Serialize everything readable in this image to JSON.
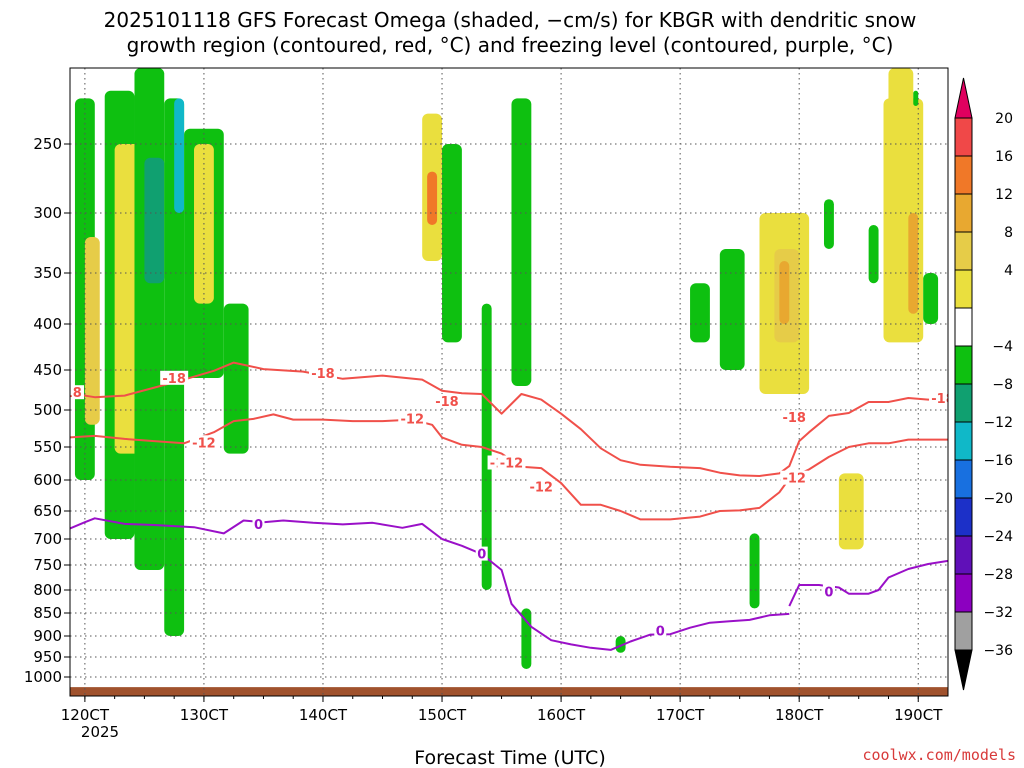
{
  "title_line1": "2025101118 GFS Forecast Omega (shaded, −cm/s) for KBGR with dendritic snow",
  "title_line2": "growth region (contoured, red, °C) and freezing level (contoured, purple, °C)",
  "xlabel": "Forecast Time (UTC)",
  "credit": "coolwx.com/models",
  "colors": {
    "dgz": "#f0504a",
    "freezing": "#9a10c8",
    "ground": "#a0522d",
    "grid": "#555555",
    "credit": "#d83a3a"
  },
  "chart_data": {
    "type": "heatmap",
    "x_axis": {
      "ticks": [
        "120CT",
        "130CT",
        "140CT",
        "150CT",
        "160CT",
        "170CT",
        "180CT",
        "190CT"
      ],
      "tick_hours": [
        0,
        24,
        48,
        72,
        96,
        120,
        144,
        168
      ],
      "sub_label": "2025",
      "xlim_hours": [
        -3,
        174
      ]
    },
    "y_axis": {
      "ticks": [
        250,
        300,
        350,
        400,
        450,
        500,
        550,
        600,
        650,
        700,
        750,
        800,
        850,
        900,
        950,
        1000
      ],
      "ylim_hPa": [
        1015,
        200
      ],
      "scale": "pressure"
    },
    "grid": "dotted",
    "colorbar": {
      "labels": [
        "20",
        "16",
        "12",
        "8",
        "4",
        "−4",
        "−8",
        "−12",
        "−16",
        "−20",
        "−24",
        "−28",
        "−32",
        "−36"
      ],
      "colors": [
        "#e0005f",
        "#f04848",
        "#f07828",
        "#e8a830",
        "#e6cc48",
        "#eadf3e",
        "#ffffff",
        "#0ec010",
        "#10a070",
        "#10b8c8",
        "#1870e0",
        "#1c30c8",
        "#6010b8",
        "#8c00c0",
        "#a0a0a0",
        "#000000"
      ]
    },
    "series": [
      {
        "kind": "dendritic-snow-growth",
        "color": "#f0504a",
        "label": "-18",
        "label_positions": [
          [
            -3,
            479
          ],
          [
            18,
            461
          ],
          [
            48,
            455
          ],
          [
            73,
            490
          ],
          [
            84,
            575
          ],
          [
            143,
            511
          ],
          [
            173,
            486
          ]
        ],
        "points": [
          [
            -3,
            479
          ],
          [
            2,
            484
          ],
          [
            8,
            482
          ],
          [
            14,
            472
          ],
          [
            20,
            462
          ],
          [
            26,
            451
          ],
          [
            30,
            442
          ],
          [
            36,
            449
          ],
          [
            44,
            452
          ],
          [
            52,
            461
          ],
          [
            60,
            457
          ],
          [
            68,
            462
          ],
          [
            72,
            476
          ],
          [
            76,
            479
          ],
          [
            80,
            480
          ],
          [
            84,
            505
          ],
          [
            88,
            480
          ],
          [
            92,
            487
          ],
          [
            96,
            505
          ],
          [
            100,
            526
          ],
          [
            104,
            552
          ],
          [
            108,
            570
          ],
          [
            112,
            577
          ],
          [
            118,
            580
          ],
          [
            124,
            582
          ],
          [
            128,
            589
          ],
          [
            132,
            593
          ],
          [
            136,
            594
          ],
          [
            140,
            590
          ],
          [
            142,
            579
          ],
          [
            144,
            542
          ],
          [
            146,
            530
          ],
          [
            150,
            508
          ],
          [
            154,
            504
          ],
          [
            158,
            490
          ],
          [
            162,
            490
          ],
          [
            166,
            485
          ],
          [
            170,
            487
          ],
          [
            174,
            487
          ]
        ]
      },
      {
        "kind": "dendritic-snow-growth",
        "color": "#f0504a",
        "label": "-12",
        "label_positions": [
          [
            24,
            545
          ],
          [
            66,
            513
          ],
          [
            86,
            575
          ],
          [
            92,
            612
          ],
          [
            143,
            598
          ]
        ],
        "points": [
          [
            -3,
            537
          ],
          [
            2,
            535
          ],
          [
            8,
            539
          ],
          [
            14,
            542
          ],
          [
            20,
            545
          ],
          [
            26,
            530
          ],
          [
            30,
            515
          ],
          [
            34,
            512
          ],
          [
            38,
            506
          ],
          [
            42,
            513
          ],
          [
            48,
            513
          ],
          [
            54,
            515
          ],
          [
            60,
            515
          ],
          [
            66,
            513
          ],
          [
            70,
            520
          ],
          [
            72,
            537
          ],
          [
            76,
            547
          ],
          [
            80,
            550
          ],
          [
            84,
            560
          ],
          [
            88,
            580
          ],
          [
            92,
            582
          ],
          [
            96,
            605
          ],
          [
            100,
            640
          ],
          [
            104,
            640
          ],
          [
            108,
            650
          ],
          [
            112,
            665
          ],
          [
            118,
            665
          ],
          [
            124,
            660
          ],
          [
            128,
            650
          ],
          [
            132,
            649
          ],
          [
            136,
            645
          ],
          [
            140,
            620
          ],
          [
            142,
            598
          ],
          [
            146,
            584
          ],
          [
            150,
            565
          ],
          [
            154,
            550
          ],
          [
            158,
            545
          ],
          [
            162,
            545
          ],
          [
            166,
            540
          ],
          [
            170,
            540
          ],
          [
            174,
            540
          ]
        ]
      },
      {
        "kind": "freezing-level",
        "color": "#9a10c8",
        "label": "0",
        "label_positions": [
          [
            35,
            675
          ],
          [
            80,
            730
          ],
          [
            116,
            890
          ],
          [
            150,
            805
          ]
        ],
        "points": [
          [
            -3,
            681
          ],
          [
            0,
            670
          ],
          [
            2,
            663
          ],
          [
            8,
            673
          ],
          [
            14,
            675
          ],
          [
            22,
            679
          ],
          [
            28,
            690
          ],
          [
            32,
            667
          ],
          [
            36,
            670
          ],
          [
            40,
            667
          ],
          [
            46,
            671
          ],
          [
            52,
            674
          ],
          [
            58,
            671
          ],
          [
            64,
            680
          ],
          [
            68,
            673
          ],
          [
            72,
            700
          ],
          [
            76,
            713
          ],
          [
            80,
            729
          ],
          [
            84,
            760
          ],
          [
            86,
            830
          ],
          [
            88,
            855
          ],
          [
            90,
            880
          ],
          [
            94,
            910
          ],
          [
            98,
            920
          ],
          [
            102,
            928
          ],
          [
            106,
            933
          ],
          [
            110,
            913
          ],
          [
            114,
            897
          ],
          [
            118,
            896
          ],
          [
            122,
            882
          ],
          [
            126,
            871
          ],
          [
            130,
            868
          ],
          [
            134,
            865
          ],
          [
            138,
            855
          ],
          [
            142,
            852
          ]
        ]
      },
      {
        "kind": "freezing-level",
        "color": "#9a10c8",
        "label": "0",
        "label_positions": [
          [
            150,
            805
          ]
        ],
        "points": [
          [
            142,
            835
          ],
          [
            144,
            790
          ],
          [
            148,
            790
          ],
          [
            152,
            795
          ],
          [
            154,
            808
          ],
          [
            158,
            808
          ],
          [
            160,
            800
          ],
          [
            162,
            775
          ],
          [
            166,
            758
          ],
          [
            170,
            748
          ],
          [
            174,
            742
          ]
        ]
      }
    ],
    "shaded_features": [
      {
        "color": "#0ec010",
        "t": [
          -2,
          2
        ],
        "p": [
          220,
          600
        ]
      },
      {
        "color": "#e6cc48",
        "t": [
          0,
          3
        ],
        "p": [
          320,
          520
        ]
      },
      {
        "color": "#0ec010",
        "t": [
          4,
          10
        ],
        "p": [
          215,
          700
        ]
      },
      {
        "color": "#eadf3e",
        "t": [
          6,
          12
        ],
        "p": [
          250,
          560
        ]
      },
      {
        "color": "#0ec010",
        "t": [
          10,
          16
        ],
        "p": [
          200,
          760
        ]
      },
      {
        "color": "#10a070",
        "t": [
          12,
          16
        ],
        "p": [
          260,
          360
        ]
      },
      {
        "color": "#0ec010",
        "t": [
          16,
          20
        ],
        "p": [
          220,
          900
        ]
      },
      {
        "color": "#10b8c8",
        "t": [
          18,
          20
        ],
        "p": [
          220,
          300
        ]
      },
      {
        "color": "#0ec010",
        "t": [
          20,
          28
        ],
        "p": [
          240,
          460
        ]
      },
      {
        "color": "#eadf3e",
        "t": [
          22,
          26
        ],
        "p": [
          250,
          380
        ]
      },
      {
        "color": "#0ec010",
        "t": [
          28,
          33
        ],
        "p": [
          380,
          560
        ]
      },
      {
        "color": "#eadf3e",
        "t": [
          68,
          72
        ],
        "p": [
          230,
          340
        ]
      },
      {
        "color": "#f07828",
        "t": [
          69,
          71
        ],
        "p": [
          270,
          310
        ]
      },
      {
        "color": "#0ec010",
        "t": [
          72,
          76
        ],
        "p": [
          250,
          420
        ]
      },
      {
        "color": "#0ec010",
        "t": [
          80,
          82
        ],
        "p": [
          380,
          800
        ]
      },
      {
        "color": "#0ec010",
        "t": [
          86,
          90
        ],
        "p": [
          220,
          470
        ]
      },
      {
        "color": "#0ec010",
        "t": [
          88,
          90
        ],
        "p": [
          840,
          980
        ]
      },
      {
        "color": "#0ec010",
        "t": [
          107,
          109
        ],
        "p": [
          900,
          940
        ]
      },
      {
        "color": "#0ec010",
        "t": [
          122,
          126
        ],
        "p": [
          360,
          420
        ]
      },
      {
        "color": "#0ec010",
        "t": [
          128,
          133
        ],
        "p": [
          330,
          450
        ]
      },
      {
        "color": "#eadf3e",
        "t": [
          136,
          146
        ],
        "p": [
          300,
          480
        ]
      },
      {
        "color": "#e6cc48",
        "t": [
          139,
          144
        ],
        "p": [
          330,
          420
        ]
      },
      {
        "color": "#0ec010",
        "t": [
          134,
          136
        ],
        "p": [
          690,
          840
        ]
      },
      {
        "color": "#e8a830",
        "t": [
          140,
          142
        ],
        "p": [
          340,
          400
        ]
      },
      {
        "color": "#0ec010",
        "t": [
          149,
          151
        ],
        "p": [
          290,
          330
        ]
      },
      {
        "color": "#eadf3e",
        "t": [
          152,
          157
        ],
        "p": [
          590,
          720
        ]
      },
      {
        "color": "#0ec010",
        "t": [
          158,
          160
        ],
        "p": [
          310,
          360
        ]
      },
      {
        "color": "#eadf3e",
        "t": [
          161,
          169
        ],
        "p": [
          220,
          420
        ]
      },
      {
        "color": "#e8a830",
        "t": [
          166,
          168
        ],
        "p": [
          300,
          390
        ]
      },
      {
        "color": "#0ec010",
        "t": [
          169,
          172
        ],
        "p": [
          350,
          400
        ]
      },
      {
        "color": "#eadf3e",
        "t": [
          162,
          167
        ],
        "p": [
          180,
          260
        ]
      },
      {
        "color": "#0ec010",
        "t": [
          167,
          168
        ],
        "p": [
          215,
          225
        ]
      }
    ]
  }
}
